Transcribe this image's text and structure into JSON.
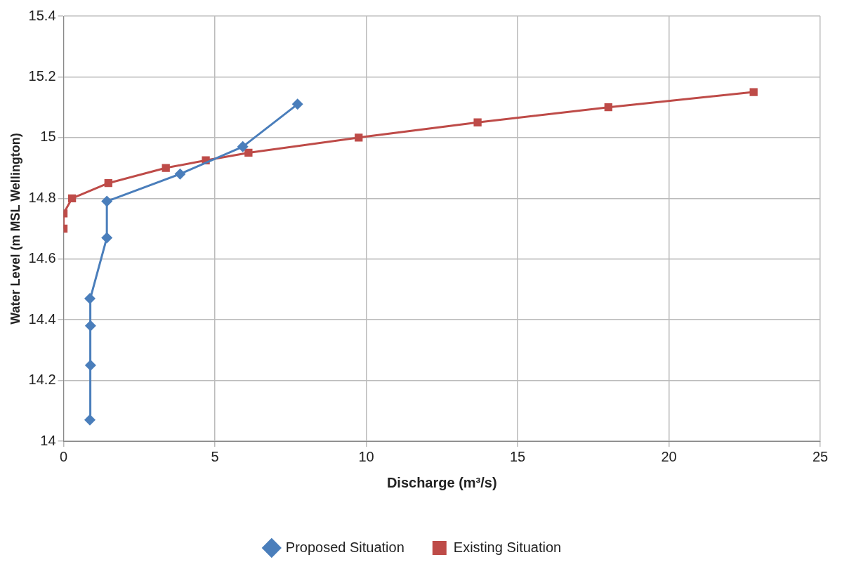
{
  "chart_data": {
    "type": "line",
    "xlabel": "Discharge (m³/s)",
    "ylabel": "Water Level (m MSL Wellington)",
    "xlim": [
      0,
      25
    ],
    "xticks": [
      0,
      5,
      10,
      15,
      20,
      25
    ],
    "ylim": [
      14,
      15.4
    ],
    "yticks": [
      14,
      14.2,
      14.4,
      14.6,
      14.8,
      15,
      15.2,
      15.4
    ],
    "grid": true,
    "legend": "bottom",
    "line_style": "solid",
    "series": [
      {
        "name": "Proposed Situation",
        "color": "#4a7ebb",
        "marker": "diamond",
        "x": [
          0.87,
          0.89,
          0.89,
          0.87,
          1.43,
          1.43,
          3.85,
          5.92,
          7.73
        ],
        "values": [
          14.07,
          14.25,
          14.38,
          14.47,
          14.67,
          14.79,
          14.88,
          14.97,
          15.11
        ]
      },
      {
        "name": "Existing Situation",
        "color": "#be4b48",
        "marker": "square",
        "x": [
          0,
          0,
          0.28,
          1.48,
          3.38,
          4.7,
          6.11,
          9.75,
          13.68,
          18.0,
          22.8
        ],
        "values": [
          14.7,
          14.75,
          14.8,
          14.85,
          14.9,
          14.925,
          14.95,
          15.0,
          15.05,
          15.1,
          15.15
        ]
      }
    ]
  }
}
